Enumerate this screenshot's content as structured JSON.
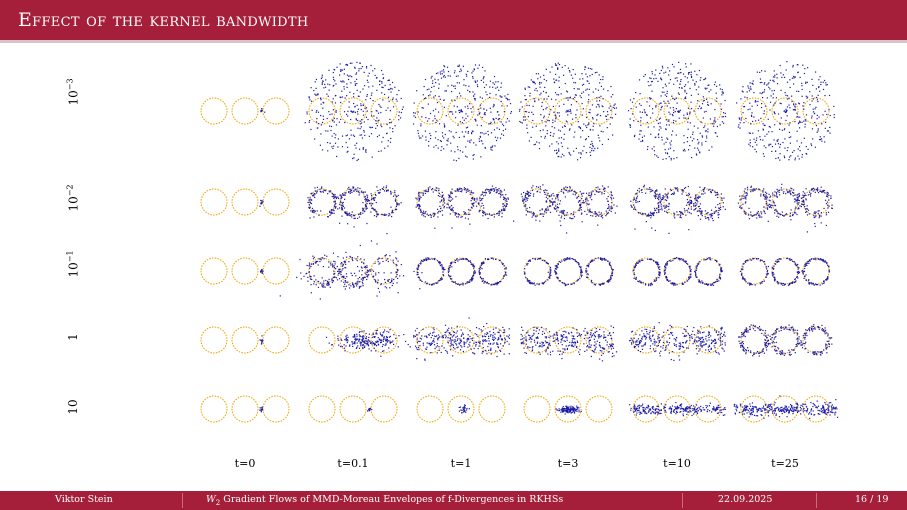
{
  "header": {
    "title": "Effect of the kernel bandwidth"
  },
  "rows": [
    {
      "label": "10",
      "exp": "−3"
    },
    {
      "label": "10",
      "exp": "−2"
    },
    {
      "label": "10",
      "exp": "−1"
    },
    {
      "label": "1",
      "exp": ""
    },
    {
      "label": "10",
      "exp": ""
    }
  ],
  "columns": [
    "t=0",
    "t=0.1",
    "t=1",
    "t=3",
    "t=10",
    "t=25"
  ],
  "colors": {
    "target": "#f0a400",
    "particles": "#1a1aa6",
    "accent": "#a51f3a"
  },
  "footer": {
    "author": "Viktor Stein",
    "title_prefix": "W",
    "title_sub": "2",
    "title_rest": " Gradient Flows of MMD-Moreau Envelopes of f-Divergences in RKHSs",
    "date": "22.09.2025",
    "page": "16 / 19"
  }
}
